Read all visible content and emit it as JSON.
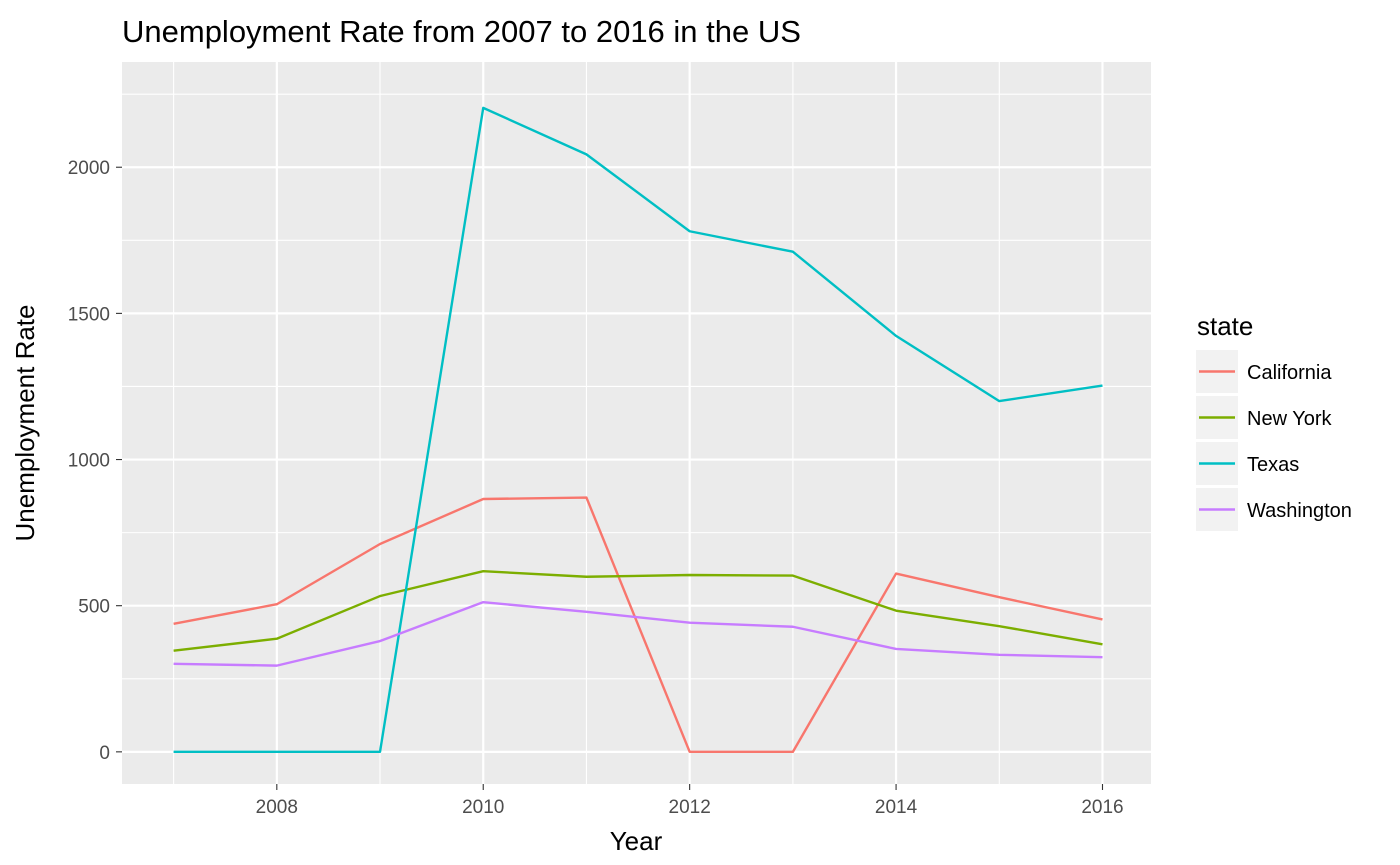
{
  "chart_data": {
    "type": "line",
    "title": "Unemployment Rate from 2007 to 2016 in the US",
    "xlabel": "Year",
    "ylabel": "Unemployment Rate",
    "x": [
      2007,
      2008,
      2009,
      2010,
      2011,
      2012,
      2013,
      2014,
      2015,
      2016
    ],
    "x_ticks": [
      2008,
      2010,
      2012,
      2014,
      2016
    ],
    "y_ticks": [
      0,
      500,
      1000,
      1500,
      2000
    ],
    "xlim": [
      2006.5,
      2016.47
    ],
    "ylim": [
      -110,
      2360
    ],
    "grid": true,
    "legend": {
      "title": "state",
      "position": "right"
    },
    "series": [
      {
        "name": "California",
        "color": "#f8766d",
        "values": [
          438,
          505,
          711,
          865,
          870,
          0,
          0,
          610,
          529,
          453
        ]
      },
      {
        "name": "New York",
        "color": "#7cae00",
        "values": [
          346,
          387,
          533,
          618,
          599,
          605,
          603,
          483,
          430,
          368
        ]
      },
      {
        "name": "Texas",
        "color": "#00bfc4",
        "values": [
          0,
          0,
          0,
          2203,
          2044,
          1781,
          1711,
          1423,
          1200,
          1253
        ]
      },
      {
        "name": "Washington",
        "color": "#c77cff",
        "values": [
          301,
          295,
          379,
          512,
          479,
          442,
          428,
          352,
          332,
          324
        ]
      }
    ]
  }
}
